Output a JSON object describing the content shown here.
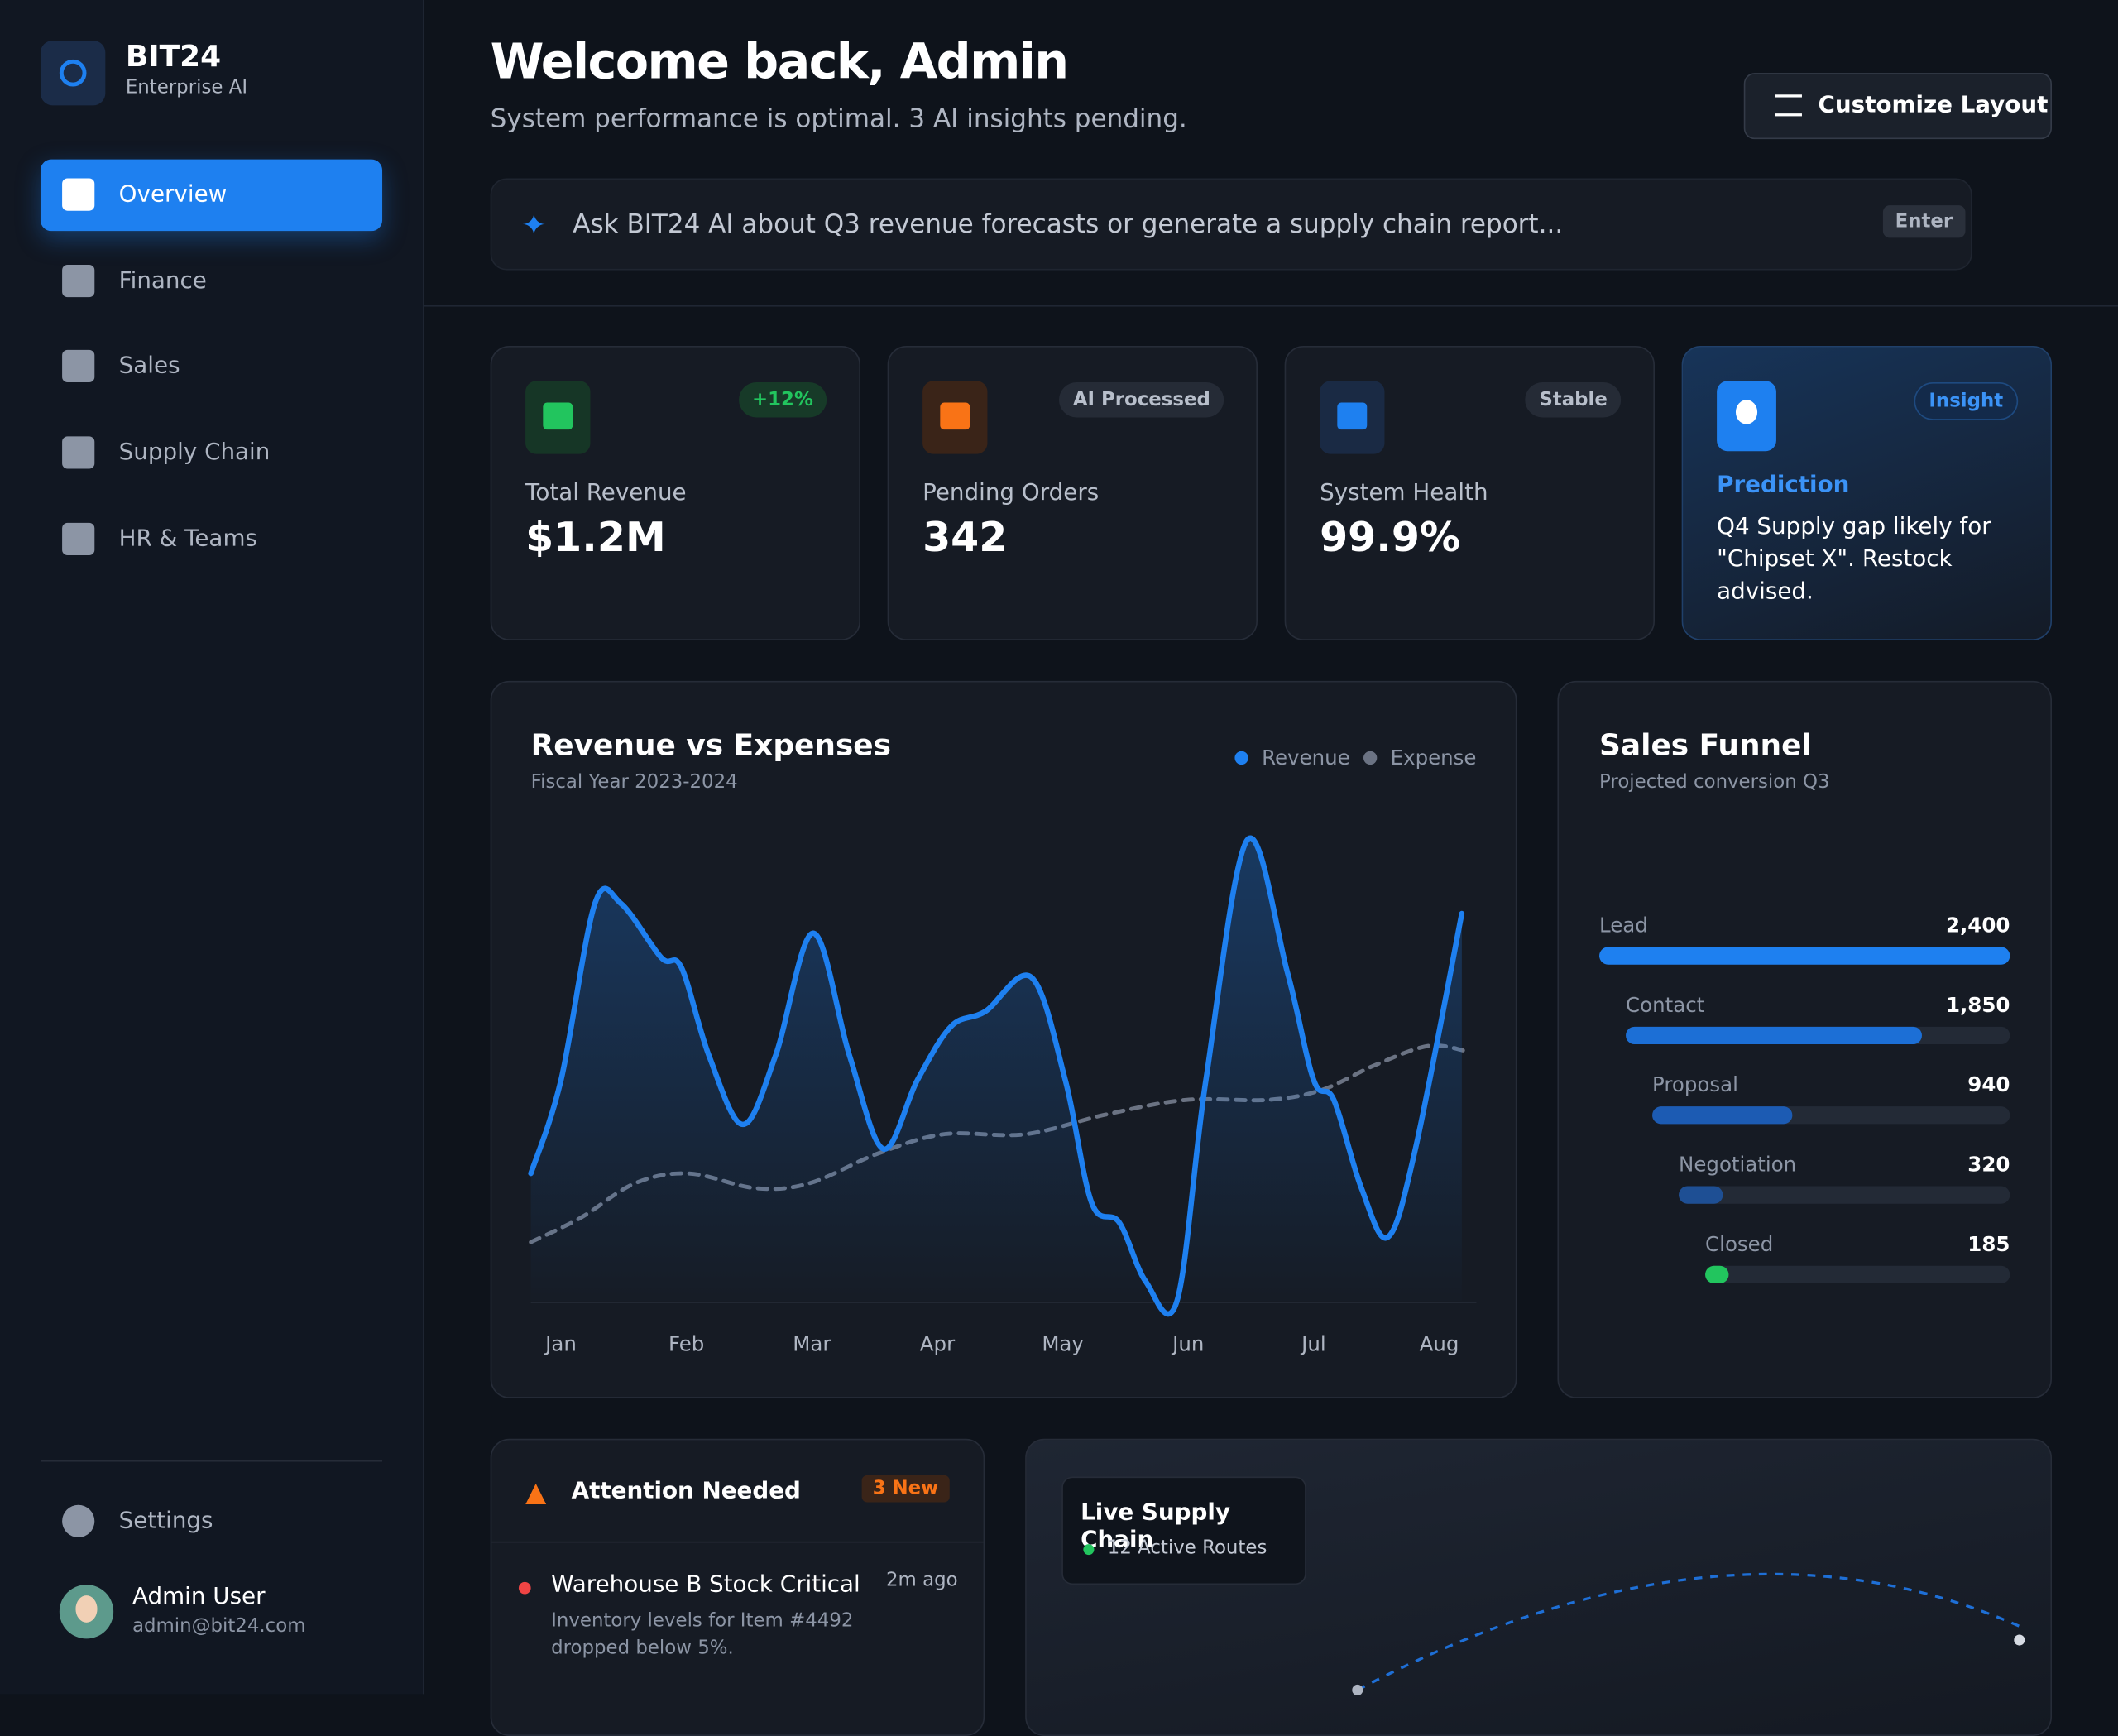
{
  "sidebar": {
    "brand": "BIT24",
    "tagline": "Enterprise AI",
    "nav": [
      "Overview",
      "Finance",
      "Sales",
      "Supply Chain",
      "HR & Teams"
    ],
    "settings": "Settings",
    "user": {
      "name": "Admin User",
      "email": "admin@bit24.com"
    }
  },
  "header": {
    "title": "Welcome back, Admin",
    "subtitle": "System performance is optimal. 3 AI insights pending.",
    "button": "Customize Layout"
  },
  "search": {
    "placeholder": "Ask BIT24 AI about Q3 revenue forecasts or generate a supply chain report...",
    "key": "Enter"
  },
  "kpis": [
    {
      "badge": "+12%",
      "label": "Total Revenue",
      "value": "$1.2M"
    },
    {
      "badge": "AI Processed",
      "label": "Pending Orders",
      "value": "342"
    },
    {
      "badge": "Stable",
      "label": "System Health",
      "value": "99.9%"
    }
  ],
  "insight": {
    "badge": "Insight",
    "title": "Prediction",
    "text": "Q4 Supply gap likely for \"Chipset X\". Restock advised."
  },
  "chart_data": [
    {
      "type": "line",
      "title": "Revenue vs Expenses",
      "subtitle": "Fiscal Year 2023-2024",
      "xlim": [
        -0.24,
        7.21
      ],
      "ylim": [
        0,
        100
      ],
      "xticks": [
        {
          "value": 0,
          "label": "Jan"
        },
        {
          "value": 1,
          "label": "Feb"
        },
        {
          "value": 2,
          "label": "Mar"
        },
        {
          "value": 3,
          "label": "Apr"
        },
        {
          "value": 4,
          "label": "May"
        },
        {
          "value": 5,
          "label": "Jun"
        },
        {
          "value": 6,
          "label": "Jul"
        },
        {
          "value": 7,
          "label": "Aug"
        }
      ],
      "series": [
        {
          "name": "Revenue",
          "color": "#1e80f0",
          "x": [
            -0.24,
            0,
            0.27,
            0.48,
            0.8,
            0.96,
            1.18,
            1.45,
            1.71,
            2.01,
            2.3,
            2.57,
            2.84,
            3.11,
            3.38,
            3.75,
            4.02,
            4.23,
            4.45,
            4.66,
            4.91,
            5.14,
            5.47,
            5.79,
            6,
            6.16,
            6.38,
            6.59,
            6.81,
            7.18
          ],
          "values": [
            26,
            45,
            81,
            81,
            70,
            68,
            50,
            36,
            50,
            75,
            50,
            31,
            45,
            56,
            59,
            66,
            45,
            20,
            16,
            4,
            0,
            45,
            94,
            67,
            45,
            41,
            23,
            13,
            31,
            79
          ]
        },
        {
          "name": "Expense",
          "color": "#6b7383",
          "x": [
            -0.24,
            0.16,
            0.59,
            1.02,
            1.55,
            1.98,
            2.52,
            3.05,
            3.7,
            4.34,
            4.98,
            5.63,
            6.06,
            6.48,
            6.91,
            7.21
          ],
          "values": [
            12,
            17,
            24,
            26,
            23,
            24,
            30,
            34,
            34,
            38,
            41,
            41,
            43,
            48,
            52,
            51
          ]
        }
      ]
    },
    {
      "type": "bar",
      "title": "Sales Funnel",
      "subtitle": "Projected conversion Q3",
      "categories": [
        "Lead",
        "Contact",
        "Proposal",
        "Negotiation",
        "Closed"
      ],
      "values": [
        2400,
        1850,
        940,
        320,
        185
      ],
      "value_labels": [
        "2,400",
        "1,850",
        "940",
        "320",
        "185"
      ],
      "xlim": [
        0,
        2400
      ],
      "colors": [
        "#1e80f0",
        "#1c6fd6",
        "#1c5bb3",
        "#1e4f94",
        "#22c55e"
      ]
    }
  ],
  "alerts": {
    "title": "Attention Needed",
    "badge": "3 New",
    "items": [
      {
        "title": "Warehouse B Stock Critical",
        "time": "2m ago",
        "text": "Inventory levels for Item #4492 dropped below 5%."
      }
    ]
  },
  "map": {
    "title": "Live Supply Chain",
    "status": "12 Active Routes"
  }
}
